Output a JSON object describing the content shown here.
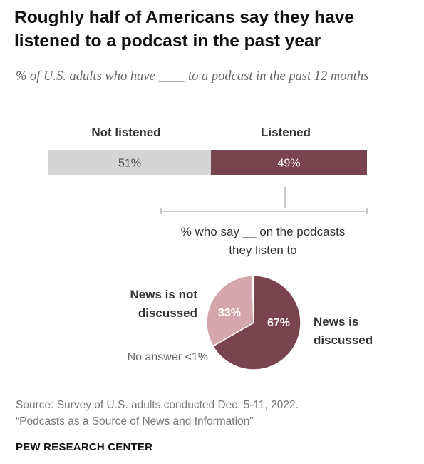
{
  "title": "Roughly half of Americans say they have listened to a podcast in the past year",
  "subtitle": "% of U.S. adults who have ____ to a podcast in the past 12 months",
  "colors": {
    "not_listened": "#d5d5d5",
    "listened": "#7a4350",
    "news_discussed": "#7a4350",
    "news_not_discussed": "#d4a6ae",
    "connector": "#999999"
  },
  "chart_data": [
    {
      "type": "bar",
      "orientation": "horizontal-stacked",
      "series": [
        {
          "name": "Not listened",
          "value": 51,
          "label": "51%"
        },
        {
          "name": "Listened",
          "value": 49,
          "label": "49%"
        }
      ]
    },
    {
      "type": "pie",
      "title": "% who say __ on the podcasts they listen to",
      "title_lines": [
        "% who say __ on the podcasts",
        "they listen to"
      ],
      "slices": [
        {
          "name": "News is discussed",
          "name_lines": [
            "News is",
            "discussed"
          ],
          "value": 67,
          "label": "67%"
        },
        {
          "name": "News is not discussed",
          "name_lines": [
            "News is not",
            "discussed"
          ],
          "value": 33,
          "label": "33%"
        },
        {
          "name": "No answer <1%",
          "value": 0.5
        }
      ]
    }
  ],
  "source": {
    "line1": "Source: Survey of U.S. adults conducted Dec. 5-11, 2022.",
    "line2": "“Podcasts as a Source of News and Information”"
  },
  "brand": "PEW RESEARCH CENTER"
}
